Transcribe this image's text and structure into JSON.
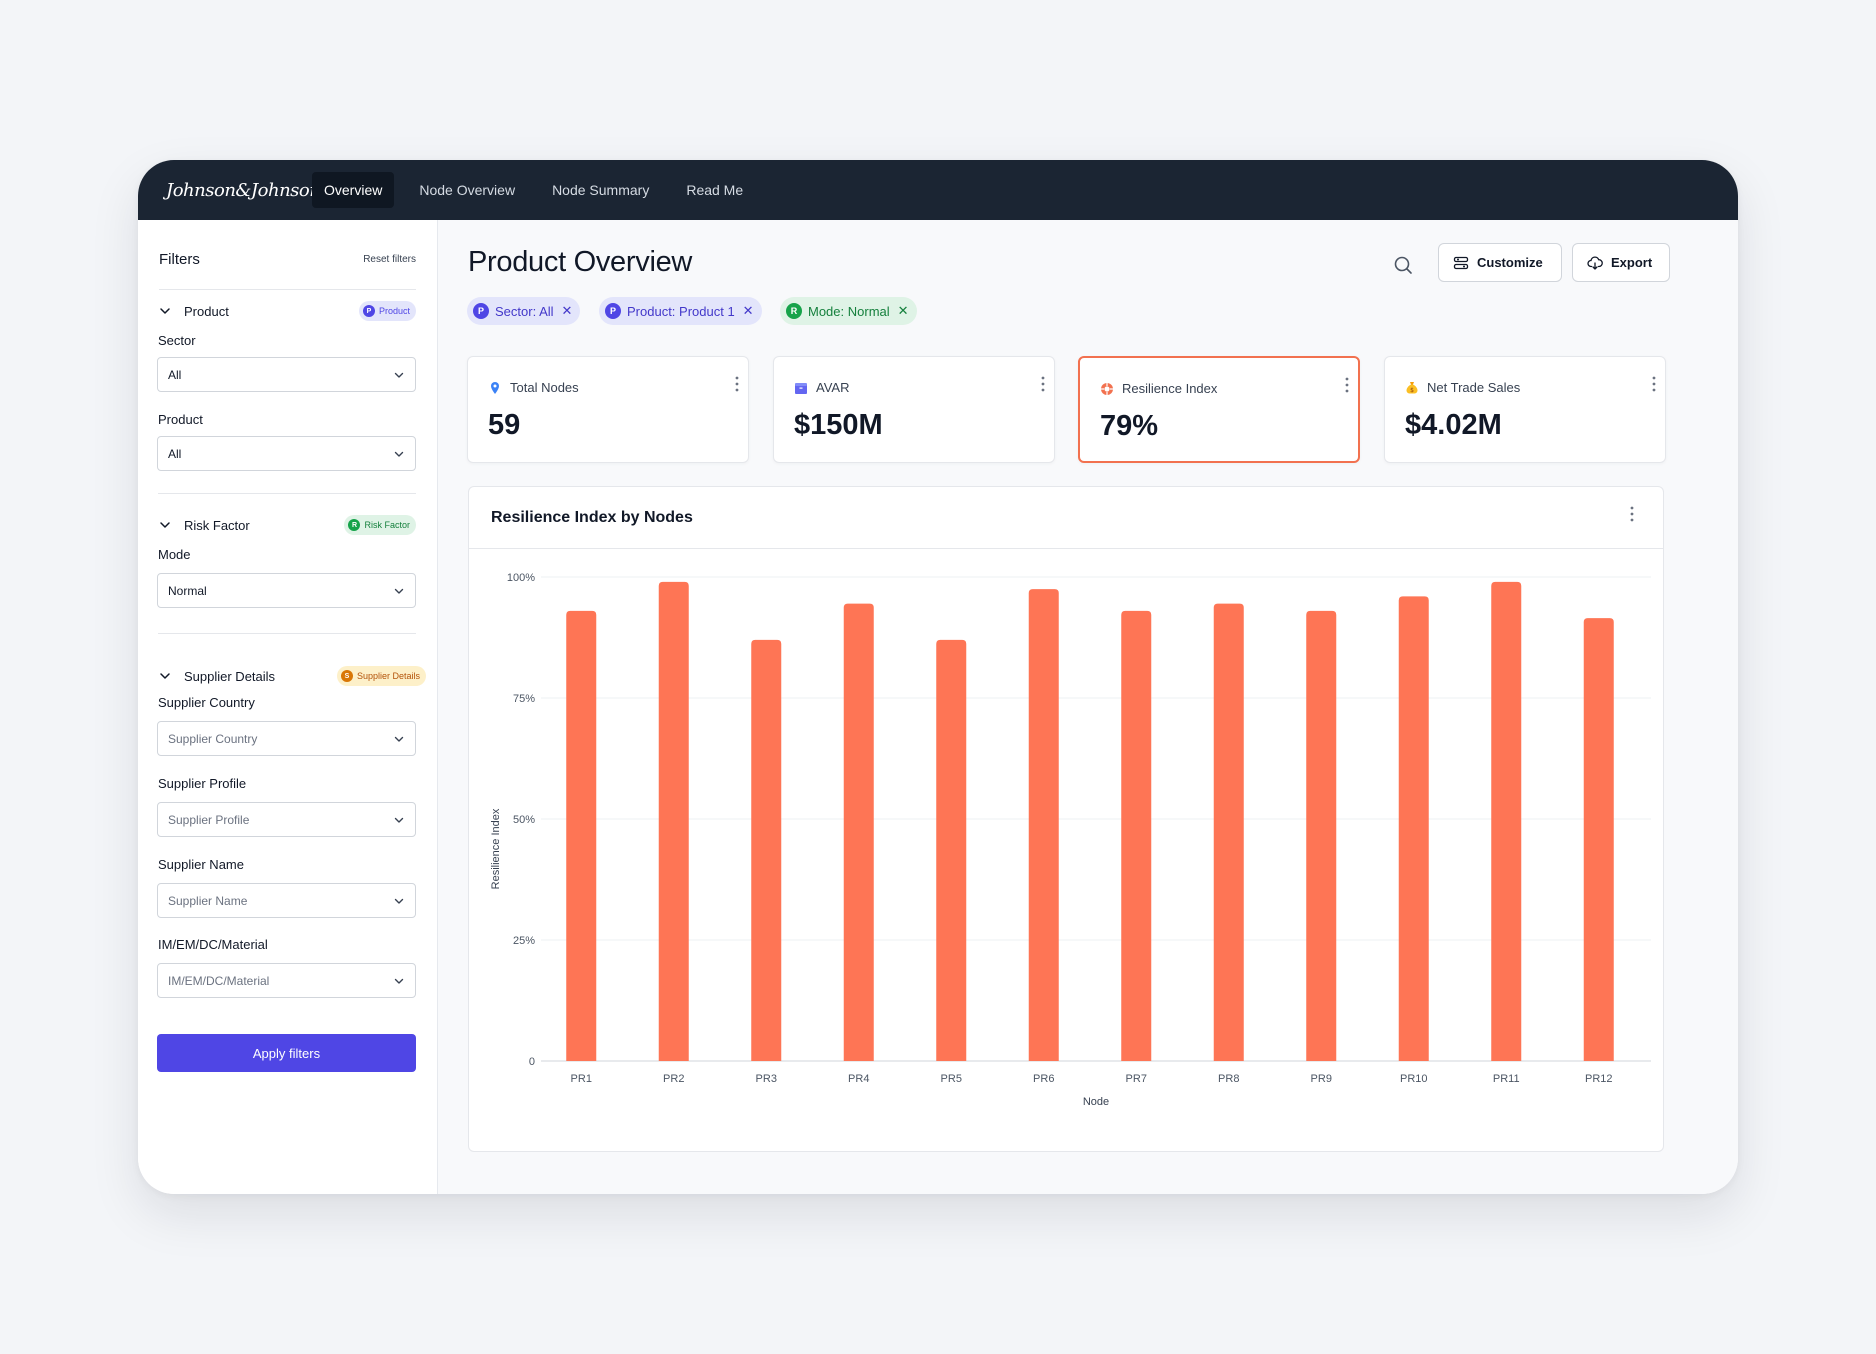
{
  "brand": {
    "logo_text": "Johnson&Johnson"
  },
  "nav": {
    "tabs": [
      {
        "label": "Overview",
        "active": true
      },
      {
        "label": "Node Overview",
        "active": false
      },
      {
        "label": "Node Summary",
        "active": false
      },
      {
        "label": "Read Me",
        "active": false
      }
    ]
  },
  "sidebar": {
    "title": "Filters",
    "reset_label": "Reset filters",
    "product_section": {
      "title": "Product",
      "badge": {
        "letter": "P",
        "label": "Product"
      },
      "sector_label": "Sector",
      "sector_value": "All",
      "product_label": "Product",
      "product_value": "All"
    },
    "risk_section": {
      "title": "Risk Factor",
      "badge": {
        "letter": "R",
        "label": "Risk Factor"
      },
      "mode_label": "Mode",
      "mode_value": "Normal"
    },
    "supplier_section": {
      "title": "Supplier Details",
      "badge": {
        "letter": "S",
        "label": "Supplier Details"
      },
      "country_label": "Supplier Country",
      "country_placeholder": "Supplier Country",
      "profile_label": "Supplier Profile",
      "profile_placeholder": "Supplier Profile",
      "name_label": "Supplier Name",
      "name_placeholder": "Supplier Name",
      "material_label": "IM/EM/DC/Material",
      "material_placeholder": "IM/EM/DC/Material"
    },
    "apply_label": "Apply filters"
  },
  "main": {
    "title": "Product Overview",
    "customize_label": "Customize",
    "export_label": "Export",
    "chips": [
      {
        "letter": "P",
        "label": "Sector: All"
      },
      {
        "letter": "P",
        "label": "Product: Product 1"
      },
      {
        "letter": "R",
        "label": "Mode: Normal"
      }
    ],
    "kpis": [
      {
        "label": "Total Nodes",
        "value": "59",
        "icon": "map-pin-icon"
      },
      {
        "label": "AVAR",
        "value": "$150M",
        "icon": "box-icon"
      },
      {
        "label": "Resilience Index",
        "value": "79%",
        "icon": "lifebuoy-icon",
        "active": true
      },
      {
        "label": "Net Trade Sales",
        "value": "$4.02M",
        "icon": "money-bag-icon"
      }
    ]
  },
  "colors": {
    "accent": "#4f46e5",
    "bar": "#fe7555",
    "topbar": "#1b2533",
    "product_badge_bg": "#e3e5fb",
    "risk_badge_bg": "#dff3e6",
    "supplier_badge_bg": "#fdf0c9"
  },
  "chart_data": {
    "type": "bar",
    "title": "Resilience Index by Nodes",
    "xlabel": "Node",
    "ylabel": "Resilience Index",
    "categories": [
      "PR1",
      "PR2",
      "PR3",
      "PR4",
      "PR5",
      "PR6",
      "PR7",
      "PR8",
      "PR9",
      "PR10",
      "PR11",
      "PR12"
    ],
    "values": [
      93,
      99,
      87,
      94.5,
      87,
      97.5,
      93,
      94.5,
      93,
      96,
      99,
      91.5
    ],
    "ylim": [
      0,
      100
    ],
    "yticks": [
      {
        "value": 0,
        "label": "0"
      },
      {
        "value": 25,
        "label": "25%"
      },
      {
        "value": 50,
        "label": "50%"
      },
      {
        "value": 75,
        "label": "75%"
      },
      {
        "value": 100,
        "label": "100%"
      }
    ],
    "grid": true
  }
}
